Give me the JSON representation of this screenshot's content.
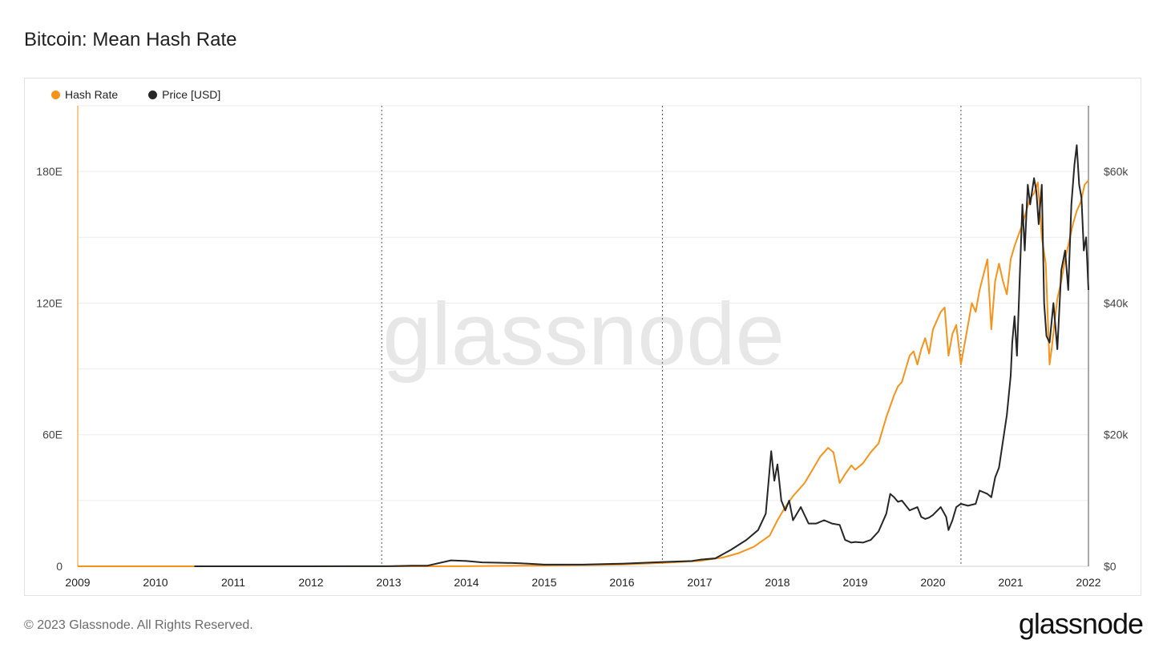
{
  "title": "Bitcoin: Mean Hash Rate",
  "footer": "© 2023 Glassnode. All Rights Reserved.",
  "brand": "glassnode",
  "watermark": "glassnode",
  "legend": [
    {
      "label": "Hash Rate",
      "color": "#f7931a"
    },
    {
      "label": "Price [USD]",
      "color": "#262626"
    }
  ],
  "chart_data": {
    "type": "line",
    "title": "Bitcoin: Mean Hash Rate",
    "x_ticks": [
      "2009",
      "2010",
      "2011",
      "2012",
      "2013",
      "2014",
      "2015",
      "2016",
      "2017",
      "2018",
      "2019",
      "2020",
      "2021",
      "2022"
    ],
    "xlim": [
      2009.0,
      2022.0
    ],
    "left_axis": {
      "ticks": [
        "0",
        "60E",
        "120E",
        "180E"
      ],
      "tick_values": [
        0,
        60,
        120,
        180
      ],
      "ylim": [
        0,
        210
      ]
    },
    "right_axis": {
      "ticks": [
        "$0",
        "$20k",
        "$40k",
        "$60k"
      ],
      "tick_values": [
        0,
        20000,
        40000,
        60000
      ],
      "ylim": [
        0,
        70000
      ]
    },
    "halvings": [
      2012.91,
      2016.52,
      2020.36
    ],
    "grid": true,
    "legend_position": "top-left",
    "series": [
      {
        "name": "Hash Rate",
        "axis": "left",
        "color": "#f7931a",
        "x": [
          2009.0,
          2012.0,
          2013.0,
          2014.0,
          2015.0,
          2016.0,
          2016.5,
          2017.0,
          2017.3,
          2017.5,
          2017.7,
          2017.9,
          2018.0,
          2018.1,
          2018.2,
          2018.35,
          2018.45,
          2018.55,
          2018.65,
          2018.72,
          2018.8,
          2018.87,
          2018.95,
          2019.0,
          2019.1,
          2019.2,
          2019.3,
          2019.4,
          2019.5,
          2019.55,
          2019.6,
          2019.7,
          2019.75,
          2019.8,
          2019.85,
          2019.9,
          2019.95,
          2020.0,
          2020.05,
          2020.1,
          2020.15,
          2020.2,
          2020.25,
          2020.3,
          2020.36,
          2020.45,
          2020.5,
          2020.55,
          2020.6,
          2020.7,
          2020.75,
          2020.8,
          2020.85,
          2020.9,
          2020.95,
          2021.0,
          2021.05,
          2021.1,
          2021.15,
          2021.2,
          2021.25,
          2021.3,
          2021.35,
          2021.4,
          2021.45,
          2021.5,
          2021.53,
          2021.56,
          2021.6,
          2021.65,
          2021.7,
          2021.75,
          2021.8,
          2021.85,
          2021.9,
          2021.95,
          2022.0
        ],
        "y": [
          0,
          0,
          0,
          0.05,
          0.35,
          0.8,
          1.5,
          2.5,
          4,
          6,
          9,
          14,
          21,
          27,
          32,
          38,
          44,
          50,
          54,
          52,
          38,
          42,
          46,
          44,
          47,
          52,
          56,
          68,
          78,
          82,
          84,
          96,
          98,
          92,
          99,
          104,
          97,
          108,
          112,
          116,
          118,
          96,
          106,
          110,
          92,
          110,
          120,
          116,
          126,
          140,
          108,
          130,
          138,
          130,
          124,
          140,
          146,
          151,
          156,
          162,
          168,
          170,
          175,
          150,
          138,
          92,
          100,
          110,
          122,
          130,
          140,
          148,
          156,
          162,
          166,
          174,
          176
        ]
      },
      {
        "name": "Price [USD]",
        "axis": "right",
        "color": "#262626",
        "x": [
          2010.5,
          2011.5,
          2012.0,
          2012.5,
          2013.0,
          2013.3,
          2013.5,
          2013.8,
          2013.9,
          2014.0,
          2014.2,
          2014.4,
          2014.6,
          2014.8,
          2015.0,
          2015.5,
          2016.0,
          2016.5,
          2016.9,
          2017.0,
          2017.2,
          2017.4,
          2017.6,
          2017.75,
          2017.85,
          2017.92,
          2017.96,
          2018.0,
          2018.05,
          2018.1,
          2018.15,
          2018.2,
          2018.3,
          2018.4,
          2018.5,
          2018.6,
          2018.7,
          2018.8,
          2018.87,
          2018.95,
          2019.0,
          2019.1,
          2019.2,
          2019.3,
          2019.4,
          2019.45,
          2019.5,
          2019.55,
          2019.6,
          2019.7,
          2019.8,
          2019.85,
          2019.9,
          2019.95,
          2020.0,
          2020.1,
          2020.17,
          2020.2,
          2020.25,
          2020.3,
          2020.36,
          2020.45,
          2020.55,
          2020.6,
          2020.7,
          2020.75,
          2020.8,
          2020.85,
          2020.9,
          2020.95,
          2021.0,
          2021.02,
          2021.05,
          2021.08,
          2021.12,
          2021.15,
          2021.18,
          2021.22,
          2021.25,
          2021.3,
          2021.33,
          2021.36,
          2021.4,
          2021.43,
          2021.46,
          2021.5,
          2021.55,
          2021.6,
          2021.65,
          2021.7,
          2021.74,
          2021.78,
          2021.82,
          2021.85,
          2021.88,
          2021.91,
          2021.94,
          2021.97,
          2022.0
        ],
        "y": [
          0,
          5,
          5,
          10,
          15,
          100,
          100,
          900,
          850,
          800,
          600,
          550,
          500,
          400,
          250,
          250,
          400,
          650,
          800,
          1000,
          1200,
          2500,
          4000,
          5500,
          8000,
          17500,
          13000,
          15500,
          10000,
          8500,
          10000,
          7000,
          9000,
          6500,
          6500,
          7000,
          6500,
          6300,
          4000,
          3600,
          3700,
          3600,
          4000,
          5300,
          8000,
          11000,
          10500,
          9800,
          10000,
          8500,
          9000,
          7500,
          7200,
          7400,
          7800,
          9000,
          7500,
          5500,
          7000,
          9000,
          9500,
          9200,
          9500,
          11500,
          11000,
          10500,
          13500,
          15000,
          19000,
          23000,
          29000,
          34000,
          38000,
          32000,
          45000,
          55000,
          48000,
          58000,
          55000,
          59000,
          57000,
          52000,
          58000,
          40000,
          35000,
          34000,
          40000,
          33000,
          45000,
          48000,
          42000,
          55000,
          61000,
          64000,
          58000,
          56000,
          48000,
          50000,
          42000
        ]
      }
    ]
  }
}
